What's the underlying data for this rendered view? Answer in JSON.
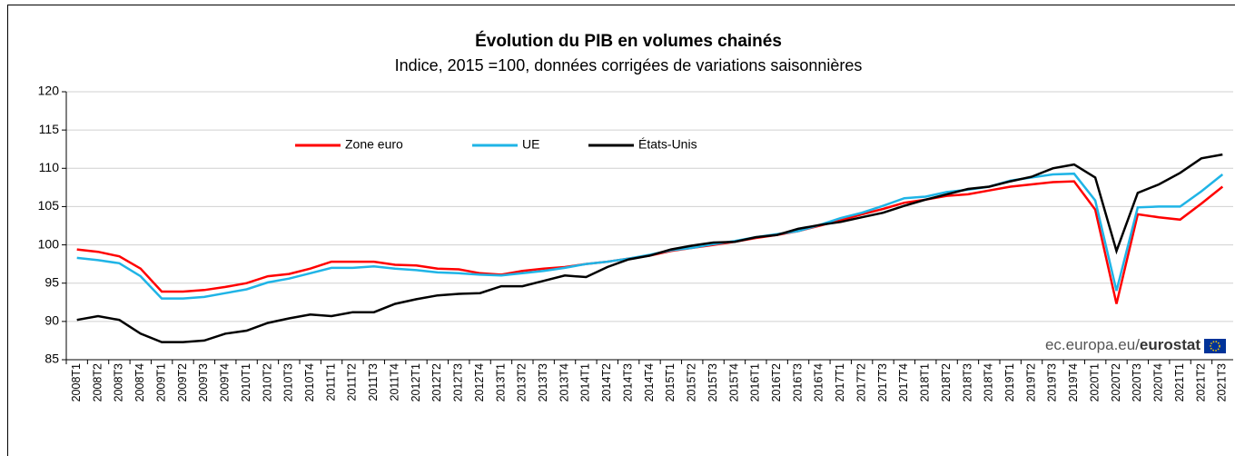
{
  "chart_data": {
    "type": "line",
    "title": "Évolution du PIB en volumes chainés",
    "subtitle": "Indice, 2015 =100, données corrigées de variations saisonnières",
    "source_prefix": "ec.europa.eu/",
    "source_brand": "eurostat",
    "categories": [
      "2008T1",
      "2008T2",
      "2008T3",
      "2008T4",
      "2009T1",
      "2009T2",
      "2009T3",
      "2009T4",
      "2010T1",
      "2010T2",
      "2010T3",
      "2010T4",
      "2011T1",
      "2011T2",
      "2011T3",
      "2011T4",
      "2012T1",
      "2012T2",
      "2012T3",
      "2012T4",
      "2013T1",
      "2013T2",
      "2013T3",
      "2013T4",
      "2014T1",
      "2014T2",
      "2014T3",
      "2014T4",
      "2015T1",
      "2015T2",
      "2015T3",
      "2015T4",
      "2016T1",
      "2016T2",
      "2016T3",
      "2016T4",
      "2017T1",
      "2017T2",
      "2017T3",
      "2017T4",
      "2018T1",
      "2018T2",
      "2018T3",
      "2018T4",
      "2019T1",
      "2019T2",
      "2019T3",
      "2019T4",
      "2020T1",
      "2020T2",
      "2020T3",
      "2020T4",
      "2021T1",
      "2021T2",
      "2021T3"
    ],
    "series": [
      {
        "name": "Zone euro",
        "color": "#ff0000",
        "values": [
          99.4,
          99.1,
          98.5,
          96.9,
          93.9,
          93.9,
          94.1,
          94.5,
          95.0,
          95.9,
          96.2,
          96.9,
          97.8,
          97.8,
          97.8,
          97.4,
          97.3,
          96.9,
          96.8,
          96.3,
          96.1,
          96.6,
          96.9,
          97.1,
          97.5,
          97.8,
          98.2,
          98.6,
          99.2,
          99.6,
          100.0,
          100.4,
          100.9,
          101.3,
          101.8,
          102.5,
          103.2,
          104.0,
          104.7,
          105.5,
          105.9,
          106.4,
          106.6,
          107.1,
          107.6,
          107.9,
          108.2,
          108.3,
          104.6,
          92.3,
          104.0,
          103.6,
          103.3,
          105.4,
          107.6
        ]
      },
      {
        "name": "UE",
        "color": "#1fb4e6",
        "values": [
          98.3,
          98.0,
          97.6,
          95.9,
          93.0,
          93.0,
          93.2,
          93.7,
          94.2,
          95.1,
          95.6,
          96.3,
          97.0,
          97.0,
          97.2,
          96.9,
          96.7,
          96.4,
          96.3,
          96.1,
          96.0,
          96.3,
          96.6,
          97.0,
          97.5,
          97.8,
          98.2,
          98.7,
          99.3,
          99.6,
          100.1,
          100.5,
          101.0,
          101.4,
          101.8,
          102.6,
          103.5,
          104.2,
          105.1,
          106.1,
          106.3,
          106.9,
          107.2,
          107.6,
          108.4,
          108.8,
          109.2,
          109.3,
          105.8,
          94.0,
          104.9,
          105.0,
          105.0,
          107.0,
          109.2
        ]
      },
      {
        "name": "États-Unis",
        "color": "#000000",
        "values": [
          90.2,
          90.7,
          90.2,
          88.4,
          87.3,
          87.3,
          87.5,
          88.4,
          88.8,
          89.8,
          90.4,
          90.9,
          90.7,
          91.2,
          91.2,
          92.3,
          92.9,
          93.4,
          93.6,
          93.7,
          94.6,
          94.6,
          95.3,
          96.0,
          95.8,
          97.1,
          98.1,
          98.6,
          99.4,
          99.9,
          100.3,
          100.4,
          101.0,
          101.3,
          102.1,
          102.6,
          103.0,
          103.6,
          104.2,
          105.1,
          105.9,
          106.6,
          107.3,
          107.6,
          108.3,
          108.9,
          110.0,
          110.5,
          108.8,
          99.2,
          106.8,
          107.9,
          109.4,
          111.3,
          111.8
        ]
      }
    ],
    "ylim": [
      85,
      120
    ],
    "yticks": [
      85,
      90,
      95,
      100,
      105,
      110,
      115,
      120
    ],
    "grid": true
  }
}
